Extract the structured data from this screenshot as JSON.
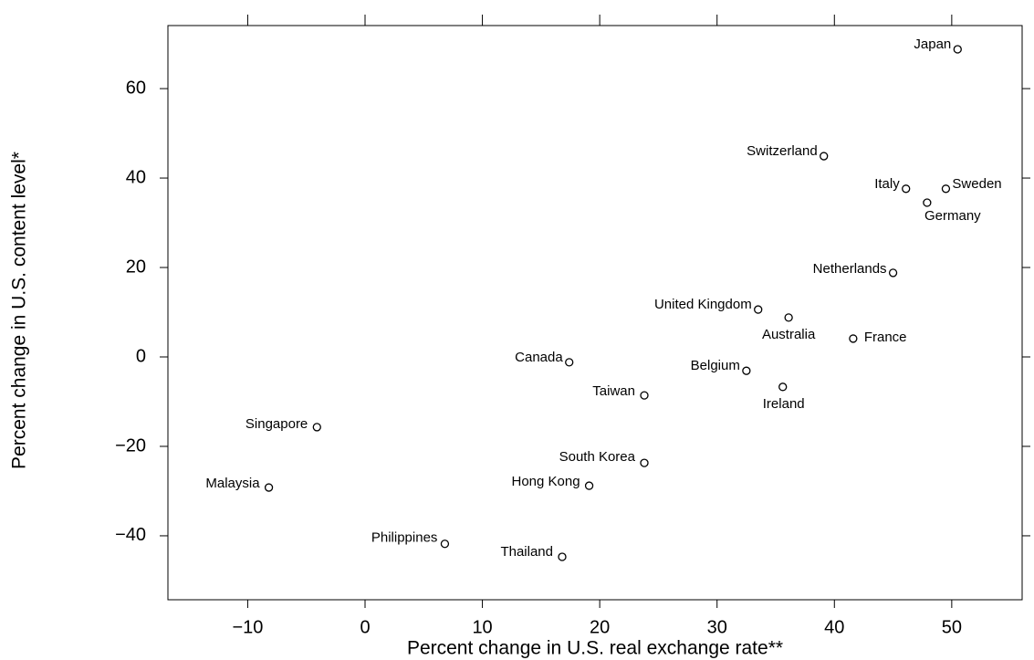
{
  "chart_data": {
    "type": "scatter",
    "xlabel": "Percent change in U.S. real exchange rate**",
    "ylabel": "Percent change in U.S. content level*",
    "point_labels": [
      "Japan",
      "Switzerland",
      "Italy",
      "Sweden",
      "Germany",
      "Netherlands",
      "United Kingdom",
      "Australia",
      "France",
      "Canada",
      "Belgium",
      "Ireland",
      "Taiwan",
      "Singapore",
      "South Korea",
      "Hong Kong",
      "Malaysia",
      "Philippines",
      "Thailand"
    ],
    "x": [
      50.5,
      39.1,
      46.1,
      49.5,
      47.9,
      45.0,
      33.5,
      36.1,
      41.6,
      17.4,
      32.5,
      35.6,
      23.8,
      -4.1,
      23.8,
      19.1,
      -8.2,
      6.8,
      16.8
    ],
    "y": [
      68.8,
      44.9,
      37.6,
      37.6,
      34.5,
      18.8,
      10.6,
      8.8,
      4.1,
      -1.2,
      -3.1,
      -6.7,
      -8.6,
      -15.7,
      -23.7,
      -28.8,
      -29.2,
      -41.8,
      -44.7
    ],
    "xlim": [
      -16.8,
      56.0
    ],
    "ylim": [
      -54.3,
      74.1
    ],
    "xticks": [
      {
        "value": -10,
        "label": "−10"
      },
      0,
      10,
      20,
      30,
      40,
      50
    ],
    "yticks": [
      {
        "value": -40,
        "label": "−40"
      },
      {
        "value": -20,
        "label": "−20"
      },
      0,
      20,
      40,
      60
    ],
    "marker_color": "#000000"
  }
}
